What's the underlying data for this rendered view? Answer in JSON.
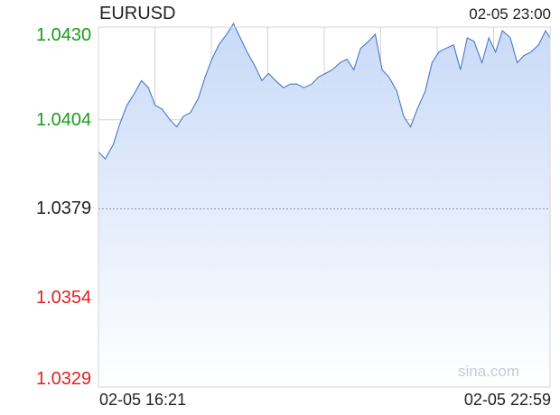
{
  "header": {
    "symbol": "EURUSD",
    "timestamp": "02-05 23:00"
  },
  "watermark": "sina.com",
  "colors": {
    "up": "#1a9c1a",
    "down": "#e02020",
    "neutral": "#222222",
    "line": "#4a78c8",
    "fill_top": "#c9daf8",
    "grid": "#d0d4dc",
    "baseline": "#9098a8"
  },
  "chart_data": {
    "type": "area",
    "title": "EURUSD",
    "y_ticks": [
      {
        "label": "1.0430",
        "value": 1.043,
        "tone": "up"
      },
      {
        "label": "1.0404",
        "value": 1.0404,
        "tone": "up"
      },
      {
        "label": "1.0379",
        "value": 1.0379,
        "tone": "neutral"
      },
      {
        "label": "1.0354",
        "value": 1.0354,
        "tone": "down"
      },
      {
        "label": "1.0329",
        "value": 1.0329,
        "tone": "down"
      }
    ],
    "ylim": [
      1.0329,
      1.043
    ],
    "reference_value": 1.0379,
    "x_start_label": "02-05 16:21",
    "x_end_label": "02-05 22:59",
    "x_start_minutes": 981,
    "x_end_minutes": 1379,
    "series": [
      {
        "x": [
          981,
          987,
          994,
          1000,
          1006,
          1012,
          1019,
          1025,
          1031,
          1037,
          1044,
          1050,
          1056,
          1062,
          1069,
          1075,
          1081,
          1087,
          1094,
          1100,
          1106,
          1112,
          1119,
          1125,
          1131,
          1137,
          1144,
          1150,
          1156,
          1162,
          1169,
          1175,
          1181,
          1187,
          1194,
          1200,
          1206,
          1212,
          1219,
          1225,
          1231,
          1237,
          1244,
          1250,
          1256,
          1262,
          1269,
          1275,
          1281,
          1287,
          1294,
          1300,
          1306,
          1312,
          1319,
          1325,
          1331,
          1337,
          1344,
          1350,
          1356,
          1362,
          1369,
          1375,
          1379
        ],
        "y": [
          1.0395,
          1.0393,
          1.0397,
          1.0403,
          1.0408,
          1.0411,
          1.0415,
          1.0413,
          1.0408,
          1.0407,
          1.0404,
          1.0402,
          1.0405,
          1.0406,
          1.041,
          1.0416,
          1.0421,
          1.0425,
          1.0428,
          1.0431,
          1.0427,
          1.0423,
          1.0419,
          1.0415,
          1.0417,
          1.0415,
          1.0413,
          1.0414,
          1.0414,
          1.0413,
          1.0414,
          1.0416,
          1.0417,
          1.0418,
          1.042,
          1.0421,
          1.0418,
          1.0424,
          1.0426,
          1.0428,
          1.0418,
          1.0416,
          1.0412,
          1.0405,
          1.0402,
          1.0407,
          1.0412,
          1.042,
          1.0423,
          1.0424,
          1.0425,
          1.0418,
          1.0427,
          1.0426,
          1.042,
          1.0427,
          1.0423,
          1.0429,
          1.0427,
          1.042,
          1.0422,
          1.0423,
          1.0425,
          1.0429,
          1.0427
        ]
      }
    ],
    "grid": true
  }
}
